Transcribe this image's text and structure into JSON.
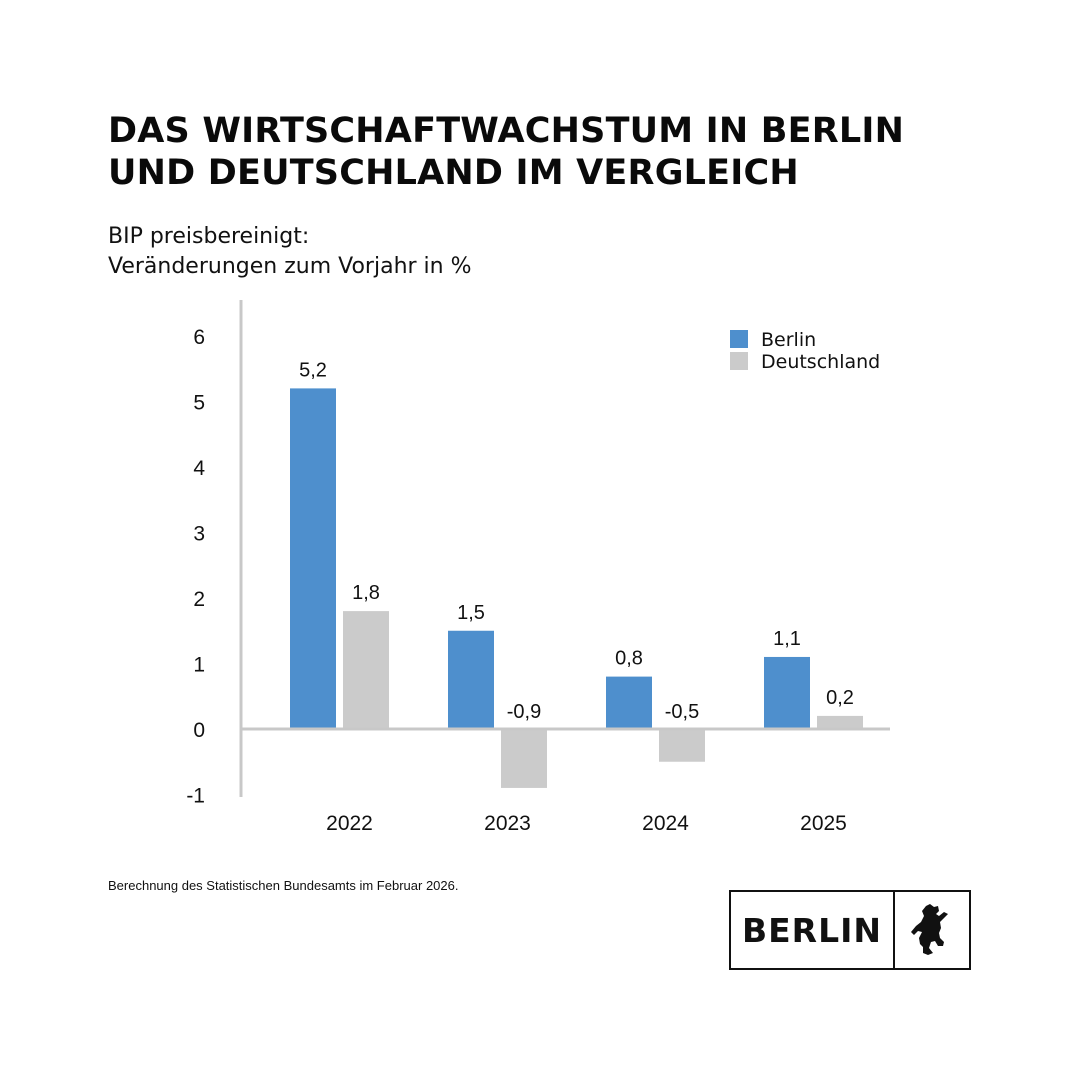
{
  "header": {
    "title_line1": "DAS WIRTSCHAFTWACHSTUM IN BERLIN",
    "title_line2": "UND DEUTSCHLAND IM VERGLEICH",
    "subtitle_line1": "BIP preisbereinigt:",
    "subtitle_line2": "Veränderungen zum Vorjahr in %"
  },
  "chart_data": {
    "type": "bar",
    "title": "DAS WIRTSCHAFTWACHSTUM IN BERLIN UND DEUTSCHLAND IM VERGLEICH",
    "subtitle": "BIP preisbereinigt: Veränderungen zum Vorjahr in %",
    "categories": [
      "2022",
      "2023",
      "2024",
      "2025"
    ],
    "series": [
      {
        "name": "Berlin",
        "values": [
          5.2,
          1.5,
          0.8,
          1.1
        ],
        "labels": [
          "5,2",
          "1,5",
          "0,8",
          "1,1"
        ],
        "color": "#4e8fcd"
      },
      {
        "name": "Deutschland",
        "values": [
          1.8,
          -0.9,
          -0.5,
          0.2
        ],
        "labels": [
          "1,8",
          "-0,9",
          "-0,5",
          "0,2"
        ],
        "color": "#cbcbcb"
      }
    ],
    "yticks": [
      "6",
      "5",
      "4",
      "3",
      "2",
      "1",
      "0",
      "-1"
    ],
    "ylim": [
      -1,
      6
    ],
    "xlabel": "",
    "ylabel": "",
    "grid": false,
    "legend": "top-right",
    "axis_color": "#c8c8c8"
  },
  "footnote": "Berechnung des Statistischen Bundesamts im Februar 2026.",
  "logo": {
    "text": "BERLIN",
    "icon": "berlin-bear-icon"
  }
}
